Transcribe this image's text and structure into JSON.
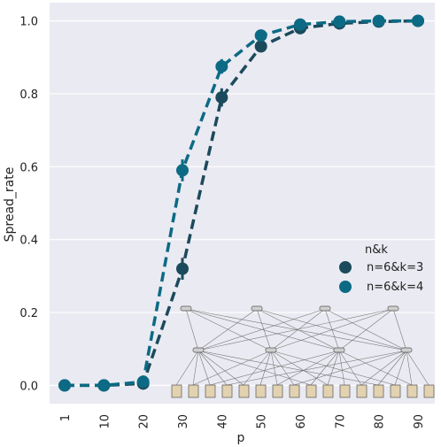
{
  "chart_data": {
    "type": "line",
    "xlabel": "p",
    "ylabel": "Spread_rate",
    "x": [
      "1",
      "10",
      "20",
      "30",
      "40",
      "50",
      "60",
      "70",
      "80",
      "90"
    ],
    "ylim": [
      -0.05,
      1.05
    ],
    "yticks": [
      "0.0",
      "0.2",
      "0.4",
      "0.6",
      "0.8",
      "1.0"
    ],
    "grid": true,
    "background": "#eaeaf2",
    "legend": {
      "title": "n&k",
      "placement": "center-right"
    },
    "series": [
      {
        "name": "n=6&k=3",
        "color": "#1b4a5c",
        "values": [
          0.0,
          0.0,
          0.005,
          0.32,
          0.79,
          0.93,
          0.98,
          0.993,
          0.998,
          1.0
        ],
        "err": [
          0.0,
          0.0,
          0.005,
          0.03,
          0.025,
          0.01,
          0.004,
          0.002,
          0.001,
          0.0
        ]
      },
      {
        "name": "n=6&k=4",
        "color": "#0c6a84",
        "values": [
          0.0,
          0.0,
          0.01,
          0.59,
          0.875,
          0.96,
          0.99,
          0.998,
          1.0,
          1.0
        ],
        "err": [
          0.0,
          0.0,
          0.006,
          0.03,
          0.02,
          0.008,
          0.003,
          0.001,
          0.0,
          0.0
        ]
      }
    ]
  }
}
